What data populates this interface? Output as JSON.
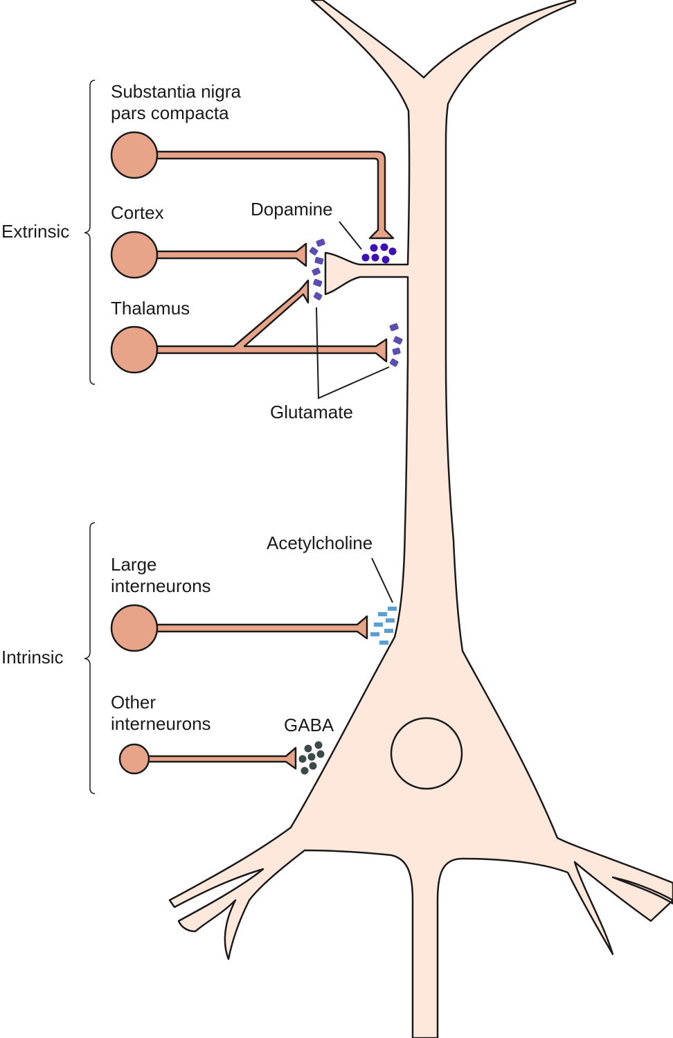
{
  "groups": {
    "extrinsic": "Extrinsic",
    "intrinsic": "Intrinsic"
  },
  "sources": {
    "substantia_nigra_line1": "Substantia nigra",
    "substantia_nigra_line2": "pars compacta",
    "cortex": "Cortex",
    "thalamus": "Thalamus",
    "large_interneurons_line1": "Large",
    "large_interneurons_line2": "interneurons",
    "other_interneurons_line1": "Other",
    "other_interneurons_line2": "interneurons"
  },
  "transmitters": {
    "dopamine": "Dopamine",
    "glutamate": "Glutamate",
    "acetylcholine": "Acetylcholine",
    "gaba": "GABA"
  },
  "colors": {
    "target_neuron_fill": "#fde8db",
    "input_neuron_fill": "#e8a489",
    "outline": "#1a1a1a",
    "dopamine": "#3e0fb4",
    "glutamate": "#5a4fb0",
    "acetylcholine": "#5a9fd6",
    "gaba": "#3b4a48"
  }
}
